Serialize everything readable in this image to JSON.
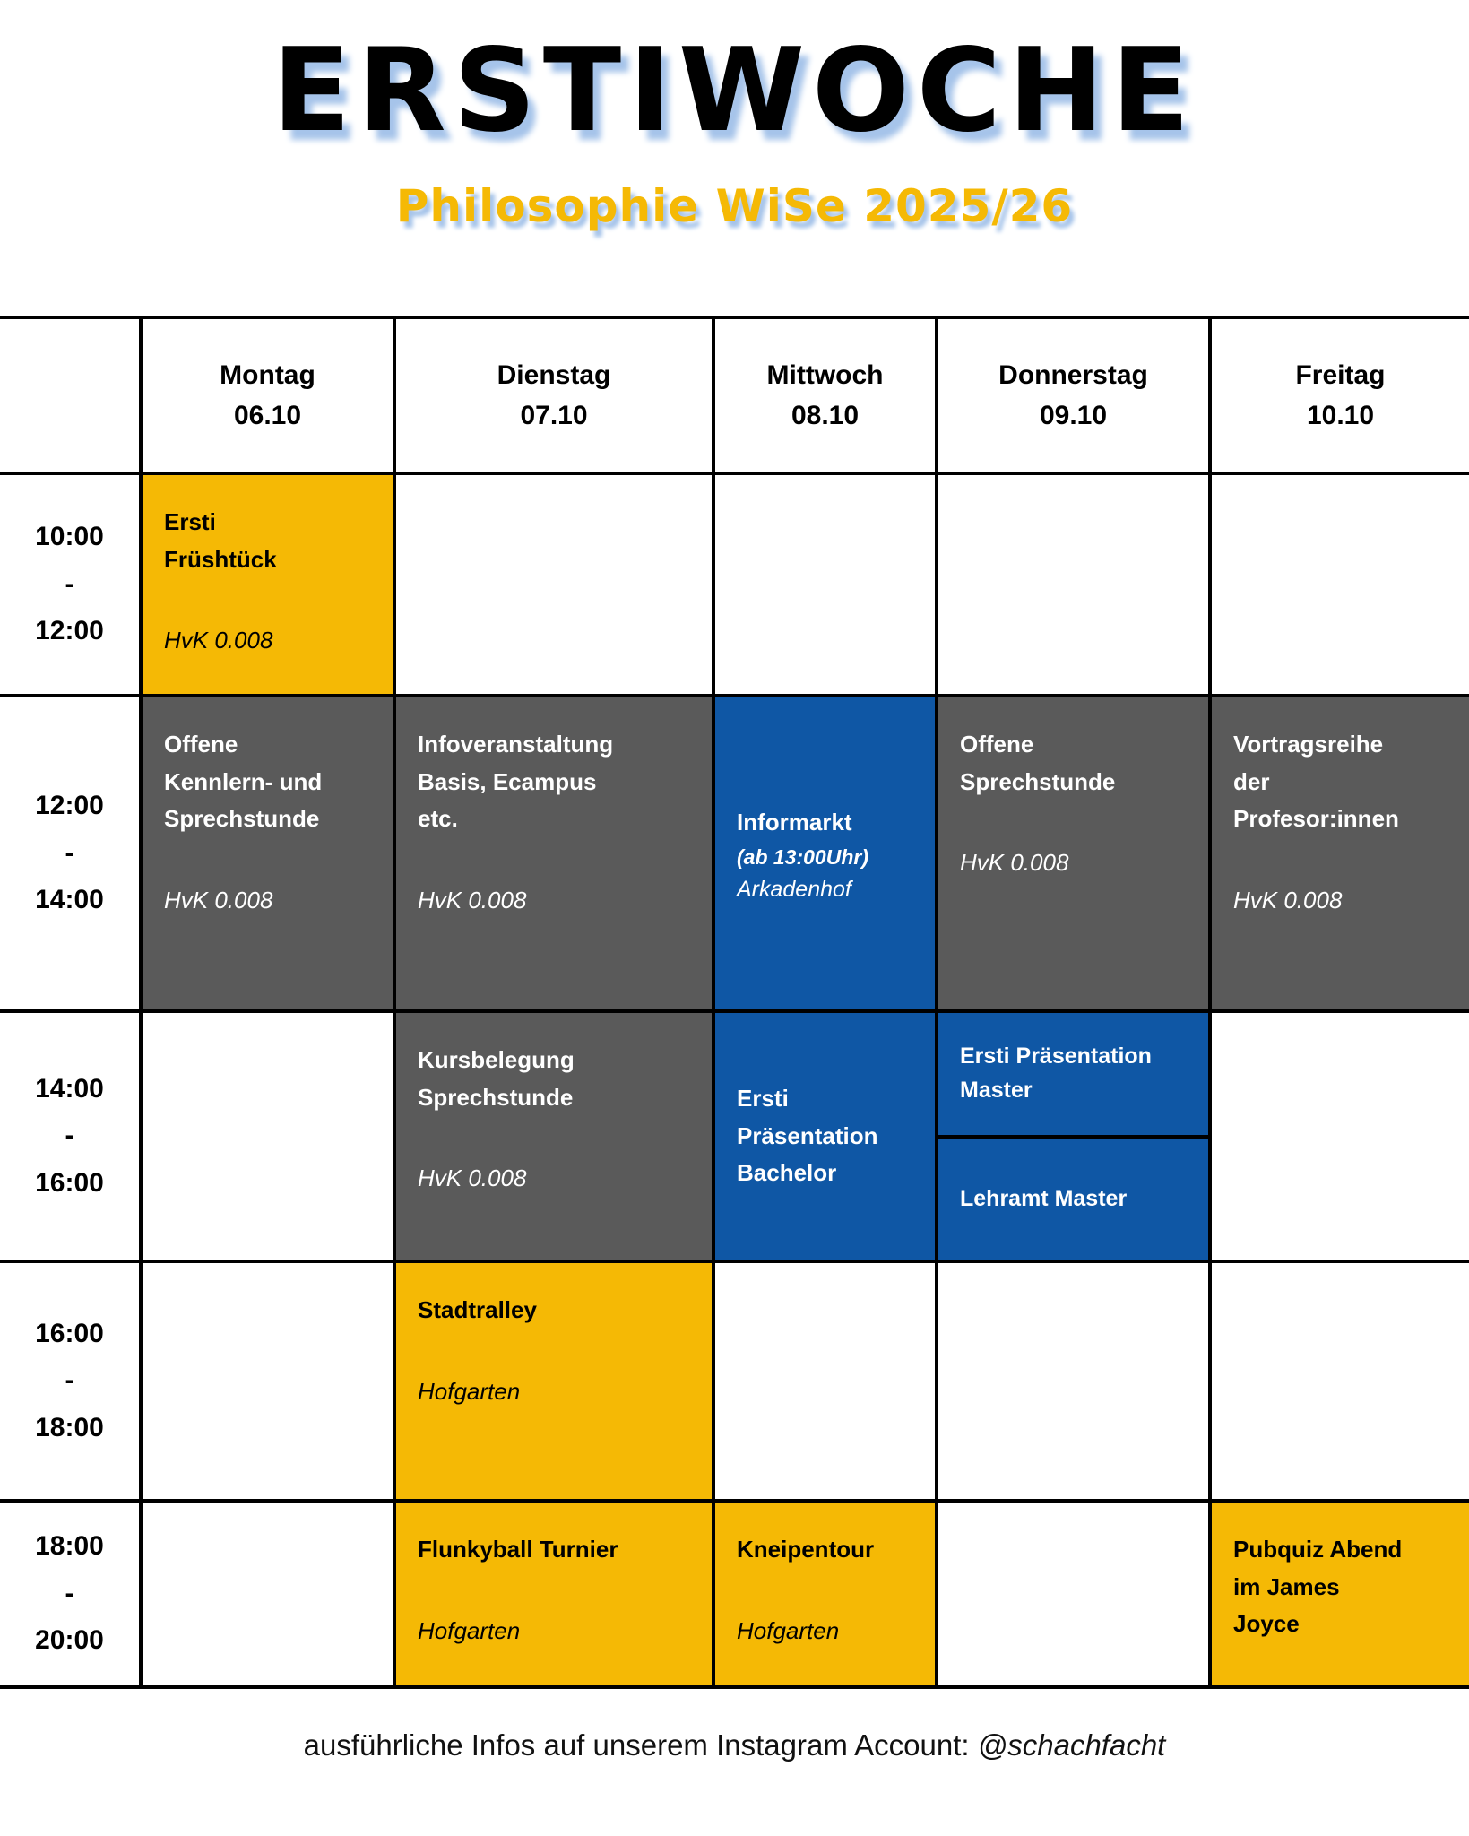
{
  "title": "ERSTIWOCHE",
  "subtitle": "Philosophie WiSe 2025/26",
  "colors": {
    "yellow": "#F5B905",
    "gray": "#5A5A5A",
    "blue": "#0F57A5",
    "grid_line": "#000000",
    "title_shadow": "#A6C4EA"
  },
  "time_sep": "-",
  "days": [
    {
      "name": "Montag",
      "date": "06.10"
    },
    {
      "name": "Dienstag",
      "date": "07.10"
    },
    {
      "name": "Mittwoch",
      "date": "08.10"
    },
    {
      "name": "Donnerstag",
      "date": "09.10"
    },
    {
      "name": "Freitag",
      "date": "10.10"
    }
  ],
  "rows": [
    {
      "time": {
        "start": "10:00",
        "end": "12:00"
      },
      "cells": [
        {
          "variant": "yellow",
          "title": "Ersti\nFrüshtück",
          "location": "HvK 0.008"
        },
        {
          "variant": "empty"
        },
        {
          "variant": "empty"
        },
        {
          "variant": "empty"
        },
        {
          "variant": "empty"
        }
      ]
    },
    {
      "time": {
        "start": "12:00",
        "end": "14:00"
      },
      "cells": [
        {
          "variant": "gray",
          "title": "Offene\nKennlern- und\nSprechstunde",
          "location": "HvK 0.008"
        },
        {
          "variant": "gray",
          "title": "Infoveranstaltung\nBasis, Ecampus\netc.",
          "location": "HvK 0.008"
        },
        {
          "variant": "blue",
          "title": "Informarkt",
          "note": "(ab 13:00Uhr)",
          "location": "Arkadenhof"
        },
        {
          "variant": "gray",
          "title": "Offene\nSprechstunde",
          "location": "HvK 0.008"
        },
        {
          "variant": "gray",
          "title": "Vortragsreihe\nder\nProfesor:innen",
          "location": "HvK 0.008"
        }
      ]
    },
    {
      "time": {
        "start": "14:00",
        "end": "16:00"
      },
      "cells": [
        {
          "variant": "empty"
        },
        {
          "variant": "gray",
          "title": "Kursbelegung\nSprechstunde",
          "location": "HvK 0.008"
        },
        {
          "variant": "blue",
          "title": "Ersti\nPräsentation\nBachelor"
        },
        {
          "variant": "split",
          "top": {
            "title": "Ersti Präsentation\nMaster"
          },
          "bottom": {
            "title": "Lehramt Master"
          }
        },
        {
          "variant": "empty"
        }
      ]
    },
    {
      "time": {
        "start": "16:00",
        "end": "18:00"
      },
      "cells": [
        {
          "variant": "empty"
        },
        {
          "variant": "yellow",
          "title": "Stadtralley",
          "location": "Hofgarten"
        },
        {
          "variant": "empty"
        },
        {
          "variant": "empty"
        },
        {
          "variant": "empty"
        }
      ]
    },
    {
      "time": {
        "start": "18:00",
        "end": "20:00"
      },
      "cells": [
        {
          "variant": "empty"
        },
        {
          "variant": "yellow",
          "title": "Flunkyball Turnier",
          "location": "Hofgarten"
        },
        {
          "variant": "yellow",
          "title": "Kneipentour",
          "location": "Hofgarten"
        },
        {
          "variant": "empty"
        },
        {
          "variant": "yellow",
          "title": "Pubquiz Abend\nim James\nJoyce"
        }
      ]
    }
  ],
  "footer": {
    "prefix": "ausführliche Infos auf unserem Instagram Account: ",
    "handle": "@schachfacht"
  }
}
